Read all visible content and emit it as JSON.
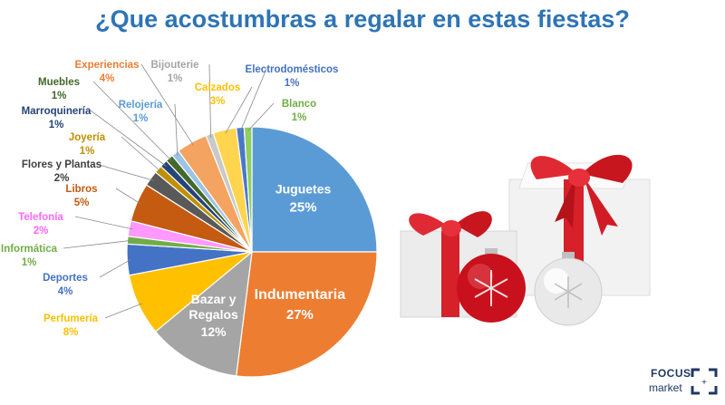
{
  "title": "¿Que acostumbras a regalar en estas fiestas?",
  "chart_data": {
    "type": "pie",
    "title": "¿Que acostumbras a regalar en estas fiestas?",
    "slices": [
      {
        "label": "Juguetes",
        "value": 25,
        "pct": "25%",
        "color": "#5b9bd5",
        "label_color": "#ffffff",
        "inside": true
      },
      {
        "label": "Indumentaria",
        "value": 27,
        "pct": "27%",
        "color": "#ed7d31",
        "label_color": "#ffffff",
        "inside": true
      },
      {
        "label": "Bazar y Regalos",
        "value": 12,
        "pct": "12%",
        "color": "#a5a5a5",
        "label_color": "#ffffff",
        "inside": true
      },
      {
        "label": "Perfumería",
        "value": 8,
        "pct": "8%",
        "color": "#ffc000",
        "label_color": "#ffc000"
      },
      {
        "label": "Deportes",
        "value": 4,
        "pct": "4%",
        "color": "#4472c4",
        "label_color": "#4472c4"
      },
      {
        "label": "Informática",
        "value": 1,
        "pct": "1%",
        "color": "#70ad47",
        "label_color": "#70ad47"
      },
      {
        "label": "Telefonía",
        "value": 2,
        "pct": "2%",
        "color": "#ff99ff",
        "label_color": "#ff66ff"
      },
      {
        "label": "Libros",
        "value": 5,
        "pct": "5%",
        "color": "#c55a11",
        "label_color": "#c55a11"
      },
      {
        "label": "Flores y Plantas",
        "value": 2,
        "pct": "2%",
        "color": "#595959",
        "label_color": "#404040"
      },
      {
        "label": "Joyería",
        "value": 1,
        "pct": "1%",
        "color": "#bf9000",
        "label_color": "#bf9000"
      },
      {
        "label": "Marroquinería",
        "value": 1,
        "pct": "1%",
        "color": "#264478",
        "label_color": "#264478"
      },
      {
        "label": "Muebles",
        "value": 1,
        "pct": "1%",
        "color": "#43682b",
        "label_color": "#43682b"
      },
      {
        "label": "Relojería",
        "value": 1,
        "pct": "1%",
        "color": "#9dc3e6",
        "label_color": "#5b9bd5"
      },
      {
        "label": "Experiencias",
        "value": 4,
        "pct": "4%",
        "color": "#f4a460",
        "label_color": "#ed7d31"
      },
      {
        "label": "Bijouterie",
        "value": 1,
        "pct": "1%",
        "color": "#c9c9c9",
        "label_color": "#a5a5a5"
      },
      {
        "label": "Calzados",
        "value": 3,
        "pct": "3%",
        "color": "#ffd54f",
        "label_color": "#ffc000"
      },
      {
        "label": "Electrodomésticos",
        "value": 1,
        "pct": "1%",
        "color": "#4a78c8",
        "label_color": "#4472c4"
      },
      {
        "label": "Blanco",
        "value": 1,
        "pct": "1%",
        "color": "#8fce63",
        "label_color": "#70ad47"
      }
    ]
  },
  "logo": {
    "line1": "FOCUS",
    "line2": "market"
  }
}
